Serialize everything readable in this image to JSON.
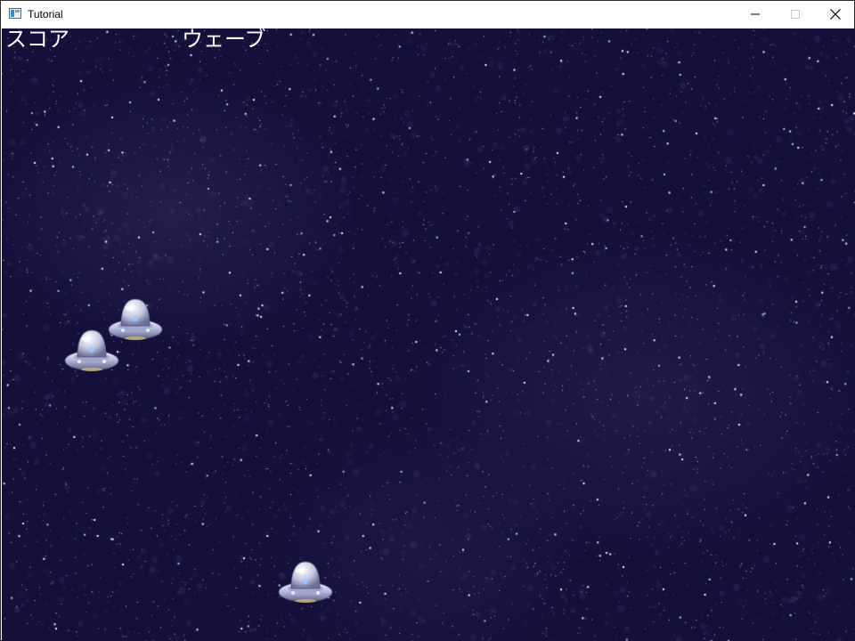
{
  "window": {
    "title": "Tutorial",
    "controls": {
      "minimize": "minimize",
      "maximize": "maximize",
      "close": "close"
    }
  },
  "hud": {
    "score_label": "スコア",
    "wave_label": "ウェーブ"
  },
  "colors": {
    "space_background": "#15103a",
    "hud_text": "#ffffff",
    "ufo_body": "#c8cce6",
    "ufo_dome": "#dfe2f2",
    "ufo_light": "#9ec6ff"
  },
  "enemies": [
    {
      "type": "ufo"
    },
    {
      "type": "ufo"
    },
    {
      "type": "ufo"
    }
  ]
}
